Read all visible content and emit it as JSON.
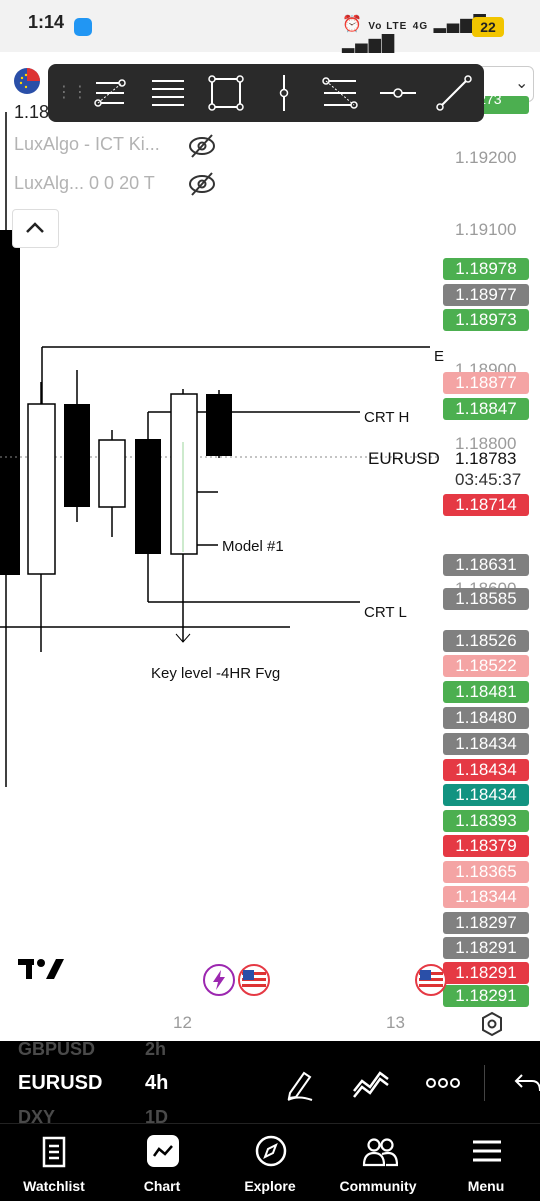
{
  "status_bar": {
    "time": "1:14",
    "network": "Vo LTE",
    "network_type": "4G",
    "battery": "22"
  },
  "indicators": [
    {
      "text": "LuxAlgo - ICT Ki..."
    },
    {
      "text": "LuxAlg... 0 0 20 T"
    }
  ],
  "symbol_header": {
    "price_partial": "1.18",
    "partial_label": "9273"
  },
  "price_axis": {
    "labels": [
      "1.19200",
      "1.19100",
      "1.18900",
      "1.18800",
      "1.18600"
    ],
    "badges": [
      {
        "value": "1.18978",
        "color": "#4caf50"
      },
      {
        "value": "1.18977",
        "color": "#808080"
      },
      {
        "value": "1.18973",
        "color": "#4caf50"
      },
      {
        "value": "1.18877",
        "color": "#f4a4a4"
      },
      {
        "value": "1.18847",
        "color": "#4caf50"
      },
      {
        "value": "1.18714",
        "color": "#e53944"
      },
      {
        "value": "1.18631",
        "color": "#808080"
      },
      {
        "value": "1.18585",
        "color": "#808080"
      },
      {
        "value": "1.18526",
        "color": "#808080"
      },
      {
        "value": "1.18522",
        "color": "#f4a4a4"
      },
      {
        "value": "1.18481",
        "color": "#4caf50"
      },
      {
        "value": "1.18480",
        "color": "#808080"
      },
      {
        "value": "1.18434",
        "color": "#808080"
      },
      {
        "value": "1.18434",
        "color": "#e53944"
      },
      {
        "value": "1.18434",
        "color": "#129381"
      },
      {
        "value": "1.18393",
        "color": "#4caf50"
      },
      {
        "value": "1.18379",
        "color": "#e53944"
      },
      {
        "value": "1.18365",
        "color": "#f4a4a4"
      },
      {
        "value": "1.18344",
        "color": "#f4a4a4"
      },
      {
        "value": "1.18297",
        "color": "#808080"
      },
      {
        "value": "1.18291",
        "color": "#808080"
      },
      {
        "value": "1.18291",
        "color": "#e53944"
      },
      {
        "value": "1.18291",
        "color": "#4caf50"
      }
    ],
    "current_price": "1.18783",
    "countdown": "03:45:37",
    "symbol_label": "EURUSD"
  },
  "chart_annotations": {
    "crt_high": "CRT H",
    "crt_low": "CRT L",
    "model": "Model #1",
    "key_level": "Key level -4HR Fvg",
    "edge_letter": "E"
  },
  "time_axis": {
    "labels": [
      "12",
      "13"
    ]
  },
  "symbol_bar": {
    "prev_symbol": "GBPUSD",
    "prev_interval": "2h",
    "symbol": "EURUSD",
    "interval": "4h",
    "next_symbol": "DXY",
    "next_interval": "1D"
  },
  "bottom_nav": [
    {
      "label": "Watchlist",
      "icon": "watchlist-icon"
    },
    {
      "label": "Chart",
      "icon": "chart-icon"
    },
    {
      "label": "Explore",
      "icon": "compass-icon"
    },
    {
      "label": "Community",
      "icon": "community-icon"
    },
    {
      "label": "Menu",
      "icon": "menu-icon"
    }
  ],
  "toolbar_tools": [
    "fib-retracement-icon",
    "parallel-lines-icon",
    "rectangle-icon",
    "vertical-line-icon",
    "fib-channel-icon",
    "horizontal-ray-icon",
    "trend-line-icon"
  ]
}
